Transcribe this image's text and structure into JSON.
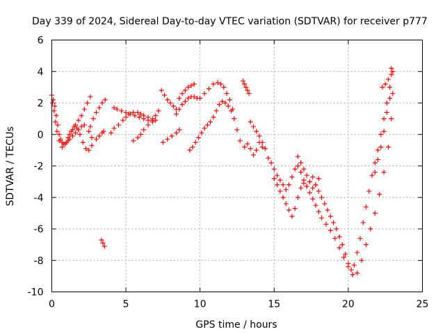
{
  "chart_data": {
    "type": "scatter",
    "title": "Day 339 of 2024, Sidereal Day-to-day VTEC variation (SDTVAR) for receiver p777",
    "xlabel": "GPS time / hours",
    "ylabel": "SDTVAR / TECUs",
    "xlim": [
      0,
      25
    ],
    "ylim": [
      -10,
      6
    ],
    "xticks": [
      0,
      5,
      10,
      15,
      20,
      25
    ],
    "yticks": [
      -10,
      -8,
      -6,
      -4,
      -2,
      0,
      2,
      4,
      6
    ],
    "grid": true,
    "marker": "+",
    "color": "#ff0000",
    "series": [
      {
        "name": "SDTVAR",
        "x": [
          0.0,
          0.1,
          0.2,
          0.3,
          0.4,
          0.5,
          0.6,
          0.7,
          0.8,
          0.9,
          1.0,
          1.1,
          1.2,
          1.4,
          1.6,
          1.8,
          2.0,
          2.2,
          2.5,
          2.7,
          3.0,
          3.2,
          3.4,
          3.5,
          0.05,
          0.15,
          0.25,
          0.35,
          0.5,
          0.7,
          0.9,
          1.1,
          1.3,
          1.5,
          1.7,
          1.9,
          2.1,
          2.3,
          2.5,
          2.7,
          1.2,
          1.4,
          1.6,
          1.8,
          2.0,
          2.2,
          2.4,
          2.6,
          2.6,
          2.8,
          3.0,
          3.2,
          3.4,
          3.6,
          3.35,
          3.45,
          3.55,
          4.0,
          4.2,
          4.5,
          4.8,
          5.0,
          5.2,
          5.5,
          5.8,
          6.0,
          6.2,
          6.5,
          6.8,
          7.0,
          4.2,
          4.4,
          4.7,
          5.0,
          5.3,
          5.6,
          5.9,
          6.2,
          6.5,
          6.8,
          5.5,
          5.8,
          6.0,
          6.2,
          6.5,
          6.8,
          7.0,
          7.2,
          7.4,
          7.6,
          7.8,
          8.0,
          8.2,
          8.4,
          7.5,
          7.8,
          8.1,
          8.4,
          8.6,
          8.4,
          8.6,
          8.8,
          9.0,
          9.2,
          9.4,
          9.6,
          9.8,
          10.0,
          10.3,
          10.6,
          10.9,
          11.2,
          11.4,
          11.6,
          11.8,
          12.0,
          12.2,
          8.6,
          8.8,
          9.0,
          9.2,
          9.4,
          9.6,
          9.3,
          9.5,
          9.7,
          9.9,
          10.1,
          10.3,
          10.5,
          10.7,
          10.9,
          11.1,
          11.3,
          11.5,
          11.7,
          11.9,
          12.1,
          12.3,
          12.5,
          12.7,
          13.0,
          13.2,
          13.4,
          13.6,
          13.8,
          14.0,
          14.2,
          12.9,
          13.0,
          13.1,
          13.2,
          13.3,
          13.4,
          13.6,
          13.8,
          14.0,
          14.2,
          14.4,
          14.6,
          14.8,
          15.0,
          15.2,
          15.4,
          15.6,
          15.8,
          16.0,
          16.2,
          16.4,
          16.6,
          16.8,
          17.0,
          17.2,
          17.4,
          17.6,
          17.8,
          18.0,
          18.2,
          18.4,
          18.6,
          18.8,
          19.0,
          19.2,
          19.4,
          19.6,
          19.8,
          20.0,
          20.2,
          20.4,
          20.6,
          20.8,
          21.0,
          21.2,
          21.4,
          21.6,
          21.8,
          22.0,
          22.2,
          22.4,
          22.6,
          22.8,
          22.9,
          15.0,
          15.2,
          15.4,
          15.6,
          15.8,
          16.0,
          16.2,
          16.4,
          16.6,
          16.8,
          17.0,
          17.2,
          17.4,
          17.6,
          17.8,
          18.0,
          18.2,
          18.5,
          18.8,
          19.1,
          19.4,
          19.7,
          20.0,
          20.3,
          20.6,
          20.9,
          21.2,
          21.5,
          21.8,
          22.1,
          22.4,
          22.7,
          22.9,
          16.6,
          16.8,
          17.0,
          17.2,
          17.4,
          17.6,
          17.8,
          18.0,
          21.8,
          22.0,
          22.2,
          22.4,
          22.6,
          22.8,
          23.0,
          22.3,
          22.5,
          22.7,
          22.9,
          23.0
        ],
        "y": [
          2.5,
          2.2,
          1.8,
          1.2,
          0.6,
          0.0,
          -0.3,
          -0.5,
          -0.6,
          -0.6,
          -0.5,
          -0.4,
          -0.3,
          -0.1,
          0.1,
          0.3,
          0.5,
          0.6,
          0.2,
          -0.2,
          -0.3,
          -0.1,
          0.1,
          0.2,
          2.0,
          1.5,
          0.8,
          0.2,
          -0.4,
          -0.8,
          -0.6,
          -0.2,
          0.2,
          0.5,
          0.4,
          0.0,
          -0.5,
          -0.9,
          -1.0,
          -0.7,
          0.0,
          0.3,
          0.6,
          0.9,
          1.2,
          1.6,
          2.0,
          2.4,
          0.5,
          1.0,
          1.4,
          1.7,
          2.0,
          2.2,
          -6.7,
          -6.9,
          -7.1,
          0.1,
          0.4,
          0.6,
          0.9,
          1.1,
          1.3,
          1.4,
          1.4,
          1.3,
          1.2,
          1.1,
          1.0,
          0.9,
          1.7,
          1.6,
          1.5,
          1.4,
          1.3,
          1.2,
          1.1,
          1.0,
          0.9,
          0.8,
          -0.4,
          -0.2,
          0.0,
          0.3,
          0.6,
          0.9,
          1.2,
          1.5,
          2.8,
          2.5,
          2.2,
          2.0,
          1.8,
          1.6,
          -0.5,
          -0.3,
          -0.1,
          0.1,
          0.3,
          1.3,
          1.6,
          1.9,
          2.1,
          2.3,
          2.4,
          2.4,
          2.3,
          2.3,
          2.6,
          2.9,
          3.2,
          3.3,
          3.2,
          3.0,
          2.6,
          2.2,
          1.6,
          2.3,
          2.6,
          2.8,
          3.0,
          3.1,
          3.2,
          -1.0,
          -0.8,
          -0.5,
          -0.2,
          0.1,
          0.4,
          0.6,
          0.8,
          1.1,
          1.5,
          1.9,
          2.1,
          2.0,
          1.8,
          1.5,
          1.0,
          0.3,
          -0.4,
          -0.8,
          -0.6,
          -0.9,
          -1.3,
          -1.0,
          -0.5,
          -0.8,
          3.4,
          3.2,
          3.0,
          2.8,
          2.6,
          0.8,
          0.5,
          0.2,
          -0.1,
          -0.5,
          -0.9,
          -1.5,
          -1.8,
          -2.2,
          -2.6,
          -2.9,
          -3.2,
          -3.5,
          -3.2,
          -2.7,
          -2.2,
          -2.0,
          -2.4,
          -2.9,
          -3.3,
          -3.0,
          -2.7,
          -3.2,
          -3.6,
          -4.0,
          -4.4,
          -4.8,
          -5.2,
          -5.6,
          -6.0,
          -6.5,
          -7.0,
          -7.6,
          -8.2,
          -8.6,
          -8.3,
          -7.5,
          -6.6,
          -5.6,
          -4.6,
          -3.6,
          -2.6,
          -1.8,
          -1.0,
          0.0,
          1.0,
          2.0,
          3.0,
          4.2,
          -2.8,
          -3.2,
          -3.6,
          -4.0,
          -4.4,
          -4.8,
          -5.2,
          -4.7,
          -4.0,
          -3.4,
          -3.1,
          -3.3,
          -3.7,
          -4.1,
          -4.5,
          -4.9,
          -5.3,
          -5.7,
          -6.1,
          -6.6,
          -7.2,
          -7.8,
          -8.4,
          -8.9,
          -8.8,
          -8.0,
          -7.0,
          -6.0,
          -5.0,
          -3.8,
          -2.4,
          -0.8,
          1.0,
          -1.4,
          -1.8,
          -2.2,
          -2.6,
          -3.0,
          -3.4,
          -3.2,
          -2.8,
          -2.4,
          -1.6,
          -0.8,
          0.2,
          1.4,
          2.3,
          2.6,
          3.0,
          3.2,
          3.5,
          3.8,
          4.0
        ]
      }
    ]
  }
}
